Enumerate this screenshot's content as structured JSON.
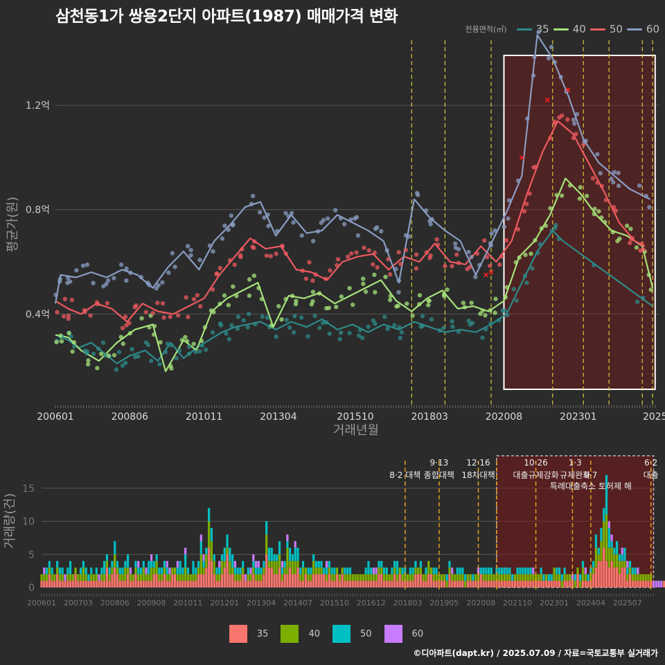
{
  "title": "삼천동1가 쌍용2단지 아파트(1987) 매매가격 변화",
  "footer": "©디아파트(dapt.kr) / 2025.07.09 / 자료=국토교통부 실거래가",
  "colors": {
    "35": "#f8766d",
    "40": "#7cae00",
    "50": "#00bfc4",
    "60": "#c77cff"
  },
  "line_colors": {
    "35": "#2e8b8b",
    "40": "#a5e47a",
    "50": "#ee5a5f",
    "60": "#8a9dc4"
  },
  "chart_data": [
    {
      "type": "line",
      "title": "삼천동1가 쌍용2단지 아파트(1987) 매매가격 변화",
      "xlabel": "거래년월",
      "ylabel": "평균가(원)",
      "x_ticks": [
        "200601",
        "200806",
        "201011",
        "201304",
        "201510",
        "201803",
        "202008",
        "202301",
        "2025"
      ],
      "y_ticks": [
        "0.4억",
        "0.8억",
        "1.2억"
      ],
      "ylim": [
        0.05,
        1.45
      ],
      "legend_title": "전용면적(㎡)",
      "legend_position": "top-right",
      "grid": true,
      "series": [
        {
          "name": "35",
          "points": [
            [
              "2006-01",
              0.32
            ],
            [
              "2006-06",
              0.3
            ],
            [
              "2006-10",
              0.27
            ],
            [
              "2007-03",
              0.29
            ],
            [
              "2007-08",
              0.25
            ],
            [
              "2008-01",
              0.21
            ],
            [
              "2008-06",
              0.24
            ],
            [
              "2008-12",
              0.26
            ],
            [
              "2009-05",
              0.22
            ],
            [
              "2009-10",
              0.29
            ],
            [
              "2010-03",
              0.23
            ],
            [
              "2010-08",
              0.27
            ],
            [
              "2011-01",
              0.3
            ],
            [
              "2011-06",
              0.33
            ],
            [
              "2011-11",
              0.35
            ],
            [
              "2012-04",
              0.36
            ],
            [
              "2012-09",
              0.37
            ],
            [
              "2013-03",
              0.34
            ],
            [
              "2013-09",
              0.37
            ],
            [
              "2014-03",
              0.35
            ],
            [
              "2014-09",
              0.38
            ],
            [
              "2015-03",
              0.34
            ],
            [
              "2015-09",
              0.36
            ],
            [
              "2016-03",
              0.33
            ],
            [
              "2016-09",
              0.36
            ],
            [
              "2017-03",
              0.34
            ],
            [
              "2017-09",
              0.37
            ],
            [
              "2018-03",
              0.35
            ],
            [
              "2018-09",
              0.33
            ],
            [
              "2019-03",
              0.34
            ],
            [
              "2019-09",
              0.33
            ],
            [
              "2020-03",
              0.36
            ],
            [
              "2020-09",
              0.4
            ],
            [
              "2021-03",
              0.52
            ],
            [
              "2021-09",
              0.64
            ],
            [
              "2022-03",
              0.72
            ],
            [
              "2022-07",
              0.68
            ],
            [
              "2025-06",
              0.43
            ]
          ]
        },
        {
          "name": "40",
          "points": [
            [
              "2006-01",
              0.32
            ],
            [
              "2006-06",
              0.31
            ],
            [
              "2006-11",
              0.26
            ],
            [
              "2007-06",
              0.22
            ],
            [
              "2008-01",
              0.29
            ],
            [
              "2008-08",
              0.34
            ],
            [
              "2009-03",
              0.36
            ],
            [
              "2009-08",
              0.18
            ],
            [
              "2010-03",
              0.3
            ],
            [
              "2010-08",
              0.26
            ],
            [
              "2011-02",
              0.41
            ],
            [
              "2011-08",
              0.46
            ],
            [
              "2012-02",
              0.49
            ],
            [
              "2012-08",
              0.52
            ],
            [
              "2013-02",
              0.35
            ],
            [
              "2013-08",
              0.47
            ],
            [
              "2014-02",
              0.46
            ],
            [
              "2014-08",
              0.48
            ],
            [
              "2015-02",
              0.44
            ],
            [
              "2015-08",
              0.47
            ],
            [
              "2016-02",
              0.5
            ],
            [
              "2016-08",
              0.53
            ],
            [
              "2017-02",
              0.45
            ],
            [
              "2017-08",
              0.41
            ],
            [
              "2018-02",
              0.46
            ],
            [
              "2018-08",
              0.49
            ],
            [
              "2019-02",
              0.42
            ],
            [
              "2019-08",
              0.43
            ],
            [
              "2020-02",
              0.41
            ],
            [
              "2020-08",
              0.45
            ],
            [
              "2021-02",
              0.62
            ],
            [
              "2021-08",
              0.68
            ],
            [
              "2022-02",
              0.78
            ],
            [
              "2022-08",
              0.92
            ],
            [
              "2023-02",
              0.86
            ],
            [
              "2023-08",
              0.78
            ],
            [
              "2024-02",
              0.72
            ],
            [
              "2024-08",
              0.7
            ],
            [
              "2025-02",
              0.66
            ],
            [
              "2025-06",
              0.5
            ]
          ]
        },
        {
          "name": "50",
          "points": [
            [
              "2006-01",
              0.45
            ],
            [
              "2006-06",
              0.42
            ],
            [
              "2006-11",
              0.4
            ],
            [
              "2007-05",
              0.44
            ],
            [
              "2007-11",
              0.42
            ],
            [
              "2008-05",
              0.37
            ],
            [
              "2008-11",
              0.44
            ],
            [
              "2009-05",
              0.41
            ],
            [
              "2009-11",
              0.4
            ],
            [
              "2010-05",
              0.43
            ],
            [
              "2010-11",
              0.46
            ],
            [
              "2011-05",
              0.55
            ],
            [
              "2011-11",
              0.62
            ],
            [
              "2012-05",
              0.69
            ],
            [
              "2012-11",
              0.65
            ],
            [
              "2013-05",
              0.66
            ],
            [
              "2013-11",
              0.57
            ],
            [
              "2014-05",
              0.56
            ],
            [
              "2014-11",
              0.53
            ],
            [
              "2015-05",
              0.6
            ],
            [
              "2015-11",
              0.62
            ],
            [
              "2016-05",
              0.63
            ],
            [
              "2016-11",
              0.57
            ],
            [
              "2017-05",
              0.62
            ],
            [
              "2017-11",
              0.6
            ],
            [
              "2018-05",
              0.67
            ],
            [
              "2018-11",
              0.6
            ],
            [
              "2019-05",
              0.59
            ],
            [
              "2019-11",
              0.66
            ],
            [
              "2020-05",
              0.6
            ],
            [
              "2020-11",
              0.68
            ],
            [
              "2021-05",
              0.86
            ],
            [
              "2021-11",
              1.02
            ],
            [
              "2022-05",
              1.14
            ],
            [
              "2022-11",
              1.09
            ],
            [
              "2023-05",
              0.98
            ],
            [
              "2023-11",
              0.87
            ],
            [
              "2024-05",
              0.75
            ],
            [
              "2024-11",
              0.68
            ],
            [
              "2025-03",
              0.66
            ]
          ]
        },
        {
          "name": "60",
          "points": [
            [
              "2006-01",
              0.44
            ],
            [
              "2006-03",
              0.55
            ],
            [
              "2006-09",
              0.54
            ],
            [
              "2007-03",
              0.56
            ],
            [
              "2007-09",
              0.54
            ],
            [
              "2008-03",
              0.57
            ],
            [
              "2008-09",
              0.55
            ],
            [
              "2009-03",
              0.5
            ],
            [
              "2009-09",
              0.58
            ],
            [
              "2010-03",
              0.64
            ],
            [
              "2010-09",
              0.57
            ],
            [
              "2011-03",
              0.68
            ],
            [
              "2011-09",
              0.74
            ],
            [
              "2012-03",
              0.81
            ],
            [
              "2012-09",
              0.83
            ],
            [
              "2013-03",
              0.7
            ],
            [
              "2013-09",
              0.78
            ],
            [
              "2014-03",
              0.71
            ],
            [
              "2014-09",
              0.72
            ],
            [
              "2015-03",
              0.78
            ],
            [
              "2015-09",
              0.75
            ],
            [
              "2016-03",
              0.72
            ],
            [
              "2016-09",
              0.68
            ],
            [
              "2017-03",
              0.52
            ],
            [
              "2017-09",
              0.84
            ],
            [
              "2018-03",
              0.77
            ],
            [
              "2018-09",
              0.72
            ],
            [
              "2019-03",
              0.68
            ],
            [
              "2019-09",
              0.55
            ],
            [
              "2020-03",
              0.67
            ],
            [
              "2020-09",
              0.79
            ],
            [
              "2021-03",
              0.93
            ],
            [
              "2021-09",
              1.47
            ],
            [
              "2022-03",
              1.38
            ],
            [
              "2022-09",
              1.24
            ],
            [
              "2023-03",
              1.07
            ],
            [
              "2023-09",
              0.98
            ],
            [
              "2024-03",
              0.93
            ],
            [
              "2024-09",
              0.88
            ],
            [
              "2025-05",
              0.84
            ]
          ]
        }
      ],
      "crosses": [
        [
          "2020-01",
          0.55
        ],
        [
          "2020-03",
          0.56
        ],
        [
          "2021-03",
          1.0
        ],
        [
          "2022-01",
          1.22
        ],
        [
          "2022-09",
          1.26
        ]
      ],
      "policy_lines": [
        "2017-08",
        "2018-09",
        "2020-03",
        "2022-03",
        "2023-03",
        "2024-01",
        "2025-02",
        "2025-06"
      ],
      "highlight": [
        "2020-08",
        "2025-07"
      ]
    },
    {
      "type": "bar",
      "ylabel": "거래량(건)",
      "x_ticks": [
        "200601",
        "200703",
        "200806",
        "200908",
        "201011",
        "201201",
        "201304",
        "201407",
        "201510",
        "201612",
        "201803",
        "201905",
        "202008",
        "202110",
        "202301",
        "202404",
        "202507"
      ],
      "y_ticks": [
        "0",
        "5",
        "10",
        "15"
      ],
      "ylim": [
        0,
        20
      ],
      "legend_position": "bottom",
      "series_names": [
        "35",
        "40",
        "50",
        "60"
      ],
      "monthly_totals": [
        2,
        3,
        3,
        4,
        3,
        2,
        4,
        3,
        3,
        2,
        3,
        4,
        2,
        3,
        2,
        3,
        4,
        3,
        2,
        3,
        2,
        3,
        2,
        3,
        4,
        5,
        3,
        4,
        7,
        4,
        3,
        3,
        4,
        5,
        3,
        2,
        4,
        4,
        3,
        4,
        3,
        4,
        5,
        4,
        5,
        3,
        3,
        4,
        4,
        3,
        3,
        3,
        4,
        4,
        3,
        6,
        3,
        2,
        4,
        3,
        4,
        8,
        5,
        6,
        12,
        9,
        5,
        3,
        4,
        5,
        6,
        8,
        6,
        5,
        4,
        3,
        3,
        4,
        2,
        3,
        3,
        5,
        4,
        4,
        3,
        4,
        10,
        6,
        6,
        5,
        5,
        7,
        4,
        4,
        8,
        6,
        5,
        7,
        6,
        3,
        4,
        3,
        3,
        3,
        5,
        4,
        4,
        4,
        3,
        4,
        4,
        3,
        3,
        3,
        2,
        3,
        3,
        3,
        3,
        2,
        2,
        2,
        2,
        2,
        3,
        4,
        3,
        3,
        3,
        4,
        4,
        3,
        3,
        2,
        3,
        4,
        4,
        3,
        3,
        3,
        2,
        3,
        3,
        4,
        3,
        4,
        2,
        3,
        4,
        3,
        3,
        3,
        2,
        2,
        2,
        2,
        4,
        3,
        2,
        3,
        3,
        3,
        2,
        2,
        2,
        2,
        2,
        3,
        3,
        3,
        3,
        3,
        3,
        2,
        3,
        3,
        3,
        3,
        3,
        3,
        2,
        2,
        3,
        3,
        3,
        3,
        3,
        3,
        3,
        2,
        2,
        3,
        2,
        2,
        2,
        2,
        3,
        3,
        3,
        2,
        3,
        2,
        2,
        2,
        2,
        3,
        2,
        4,
        3,
        2,
        3,
        4,
        8,
        6,
        9,
        12,
        17,
        10,
        8,
        6,
        7,
        5,
        6,
        6,
        4,
        4,
        3,
        3,
        3,
        2,
        2,
        2,
        2,
        2,
        1,
        1,
        1,
        1,
        1,
        1,
        1,
        1,
        1,
        1,
        1,
        1,
        1,
        1,
        1,
        1,
        1,
        1,
        1,
        1,
        1,
        1,
        1,
        1,
        1,
        1,
        1,
        1,
        1,
        1,
        1,
        1,
        1,
        1
      ],
      "policy_lines": [
        "2017-08",
        "2018-09",
        "2019-12",
        "2020-07",
        "2021-10",
        "2022-12",
        "2023-07",
        "2025-06"
      ],
      "highlight": [
        "2020-07",
        "2025-07"
      ],
      "annotations": [
        {
          "x": "2017-08",
          "text": "8·2 대책",
          "row": 2
        },
        {
          "x": "2018-09",
          "text": "9·13",
          "row": 1
        },
        {
          "x": "2018-09",
          "text": "종합대책",
          "row": 2
        },
        {
          "x": "2019-12",
          "text": "12·16",
          "row": 1
        },
        {
          "x": "2019-12",
          "text": "18차대책",
          "row": 2
        },
        {
          "x": "2021-10",
          "text": "10·26",
          "row": 1
        },
        {
          "x": "2021-10",
          "text": "대출규제강화",
          "row": 2
        },
        {
          "x": "2023-01",
          "text": "1·3",
          "row": 1
        },
        {
          "x": "2023-01",
          "text": "규제완화",
          "row": 2
        },
        {
          "x": "2023-07",
          "text": "9·7",
          "row": 2
        },
        {
          "x": "2023-07",
          "text": "특례대출축소 토허제 해",
          "row": 3
        },
        {
          "x": "2025-06",
          "text": "6·2",
          "row": 1
        },
        {
          "x": "2025-06",
          "text": "대출",
          "row": 2
        }
      ]
    }
  ]
}
